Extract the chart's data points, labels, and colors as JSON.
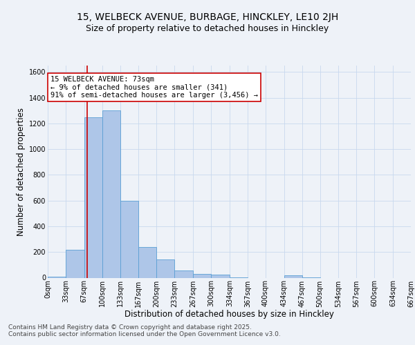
{
  "title1": "15, WELBECK AVENUE, BURBAGE, HINCKLEY, LE10 2JH",
  "title2": "Size of property relative to detached houses in Hinckley",
  "xlabel": "Distribution of detached houses by size in Hinckley",
  "ylabel": "Number of detached properties",
  "bin_edges": [
    0,
    33,
    67,
    100,
    133,
    167,
    200,
    233,
    267,
    300,
    334,
    367,
    400,
    434,
    467,
    500,
    534,
    567,
    600,
    634,
    667
  ],
  "bar_heights": [
    10,
    220,
    1250,
    1300,
    600,
    240,
    140,
    55,
    30,
    25,
    5,
    0,
    0,
    20,
    5,
    0,
    0,
    0,
    0,
    0
  ],
  "bar_color": "#aec6e8",
  "bar_edge_color": "#5a9fd4",
  "grid_color": "#c8d8ee",
  "property_size": 73,
  "red_line_color": "#cc0000",
  "annotation_line1": "15 WELBECK AVENUE: 73sqm",
  "annotation_line2": "← 9% of detached houses are smaller (341)",
  "annotation_line3": "91% of semi-detached houses are larger (3,456) →",
  "annotation_box_color": "#ffffff",
  "annotation_box_edge_color": "#cc0000",
  "ylim": [
    0,
    1650
  ],
  "yticks": [
    0,
    200,
    400,
    600,
    800,
    1000,
    1200,
    1400,
    1600
  ],
  "footer_text": "Contains HM Land Registry data © Crown copyright and database right 2025.\nContains public sector information licensed under the Open Government Licence v3.0.",
  "bg_color": "#eef2f8",
  "title1_fontsize": 10,
  "title2_fontsize": 9,
  "xlabel_fontsize": 8.5,
  "ylabel_fontsize": 8.5,
  "tick_fontsize": 7,
  "annotation_fontsize": 7.5,
  "footer_fontsize": 6.5
}
